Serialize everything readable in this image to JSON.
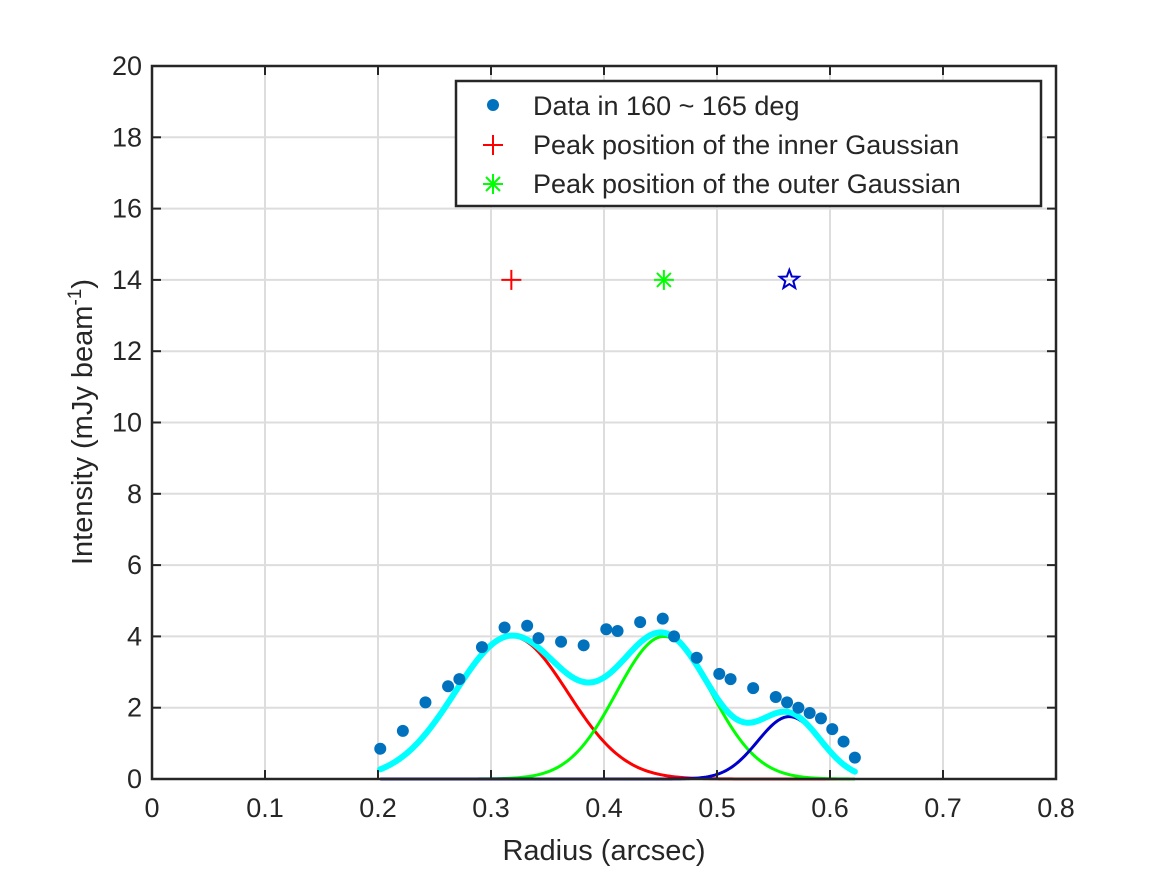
{
  "chart_data": {
    "type": "line",
    "xlabel": "Radius (arcsec)",
    "ylabel": "Intensity (mJy beam",
    "ylabel_sup": "-1",
    "ylabel_end": ")",
    "xlim": [
      0,
      0.8
    ],
    "ylim": [
      0,
      20
    ],
    "xticks": [
      0,
      0.1,
      0.2,
      0.3,
      0.4,
      0.5,
      0.6,
      0.7,
      0.8
    ],
    "xtick_labels": [
      "0",
      "0.1",
      "0.2",
      "0.3",
      "0.4",
      "0.5",
      "0.6",
      "0.7",
      "0.8"
    ],
    "yticks": [
      0,
      2,
      4,
      6,
      8,
      10,
      12,
      14,
      16,
      18,
      20
    ],
    "ytick_labels": [
      "0",
      "2",
      "4",
      "6",
      "8",
      "10",
      "12",
      "14",
      "16",
      "18",
      "20"
    ],
    "grid": true,
    "legend_position": "top-right",
    "legend": [
      {
        "label": "Data in 160 ~ 165 deg",
        "marker": "dot",
        "color": "#0072BD"
      },
      {
        "label": "Peak position of the inner Gaussian",
        "marker": "plus",
        "color": "#FF0000"
      },
      {
        "label": "Peak position of the outer Gaussian",
        "marker": "asterisk",
        "color": "#00FF00"
      }
    ],
    "data_points": {
      "color": "#0072BD",
      "x": [
        0.202,
        0.222,
        0.242,
        0.262,
        0.272,
        0.292,
        0.312,
        0.332,
        0.342,
        0.362,
        0.382,
        0.402,
        0.412,
        0.432,
        0.452,
        0.462,
        0.482,
        0.502,
        0.512,
        0.532,
        0.552,
        0.562,
        0.572,
        0.582,
        0.592,
        0.602,
        0.612,
        0.622
      ],
      "y": [
        0.85,
        1.35,
        2.15,
        2.6,
        2.8,
        3.7,
        4.25,
        4.3,
        3.95,
        3.85,
        3.75,
        4.2,
        4.15,
        4.4,
        4.5,
        4.0,
        3.4,
        2.95,
        2.8,
        2.55,
        2.3,
        2.15,
        2.0,
        1.85,
        1.7,
        1.4,
        1.05,
        0.6
      ]
    },
    "gaussians": [
      {
        "role": "inner",
        "color": "#FF0000",
        "amplitude": 4.0,
        "center": 0.318,
        "sigma": 0.05
      },
      {
        "role": "outer",
        "color": "#00FF00",
        "amplitude": 4.0,
        "center": 0.453,
        "sigma": 0.042
      },
      {
        "role": "third",
        "color": "#0000CC",
        "amplitude": 1.75,
        "center": 0.564,
        "sigma": 0.028
      }
    ],
    "fit_curve": {
      "color": "#00FFFF",
      "x_range": [
        0.202,
        0.622
      ]
    },
    "peak_markers": [
      {
        "x": 0.318,
        "y": 14,
        "marker": "plus",
        "color": "#FF0000"
      },
      {
        "x": 0.453,
        "y": 14,
        "marker": "asterisk",
        "color": "#00FF00"
      },
      {
        "x": 0.564,
        "y": 14,
        "marker": "star",
        "color": "#0000CC"
      }
    ]
  }
}
